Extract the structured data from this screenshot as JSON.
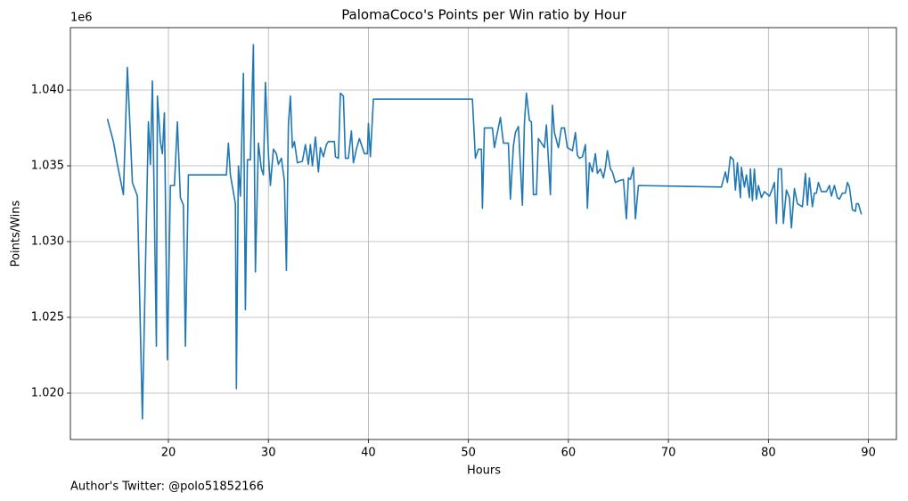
{
  "chart_data": {
    "type": "line",
    "title": "PalomaCoco's Points per Win ratio by Hour",
    "xlabel": "Hours",
    "ylabel": "Points/Wins",
    "y_offset_label": "1e6",
    "footnote": "Author's Twitter: @polo51852166",
    "x": [
      13.9,
      14.5,
      14.9,
      15.5,
      15.9,
      16.4,
      16.9,
      17.4,
      18.0,
      18.2,
      18.4,
      18.8,
      18.9,
      19.2,
      19.4,
      19.6,
      19.9,
      20.2,
      20.6,
      20.9,
      21.2,
      21.5,
      21.7,
      22.0,
      25.8,
      26.0,
      26.2,
      26.7,
      26.8,
      27.0,
      27.2,
      27.5,
      27.7,
      27.9,
      28.2,
      28.5,
      28.7,
      29.0,
      29.3,
      29.5,
      29.7,
      30.0,
      30.2,
      30.5,
      30.8,
      31.0,
      31.3,
      31.6,
      31.8,
      32.0,
      32.2,
      32.4,
      32.6,
      32.9,
      33.4,
      33.7,
      34.0,
      34.2,
      34.4,
      34.7,
      35.0,
      35.2,
      35.5,
      35.8,
      36.0,
      36.6,
      36.7,
      37.0,
      37.2,
      37.5,
      37.7,
      38.0,
      38.3,
      38.5,
      38.8,
      39.1,
      39.3,
      39.6,
      39.9,
      40.0,
      40.2,
      40.5,
      50.4,
      50.7,
      51.0,
      51.3,
      51.4,
      51.6,
      52.4,
      52.6,
      52.9,
      53.2,
      53.5,
      54.0,
      54.2,
      54.5,
      54.7,
      55.0,
      55.4,
      55.6,
      55.8,
      56.1,
      56.3,
      56.5,
      56.8,
      57.0,
      57.6,
      57.8,
      58.2,
      58.4,
      58.6,
      59.0,
      59.3,
      59.6,
      59.9,
      60.4,
      60.7,
      60.9,
      61.1,
      61.4,
      61.7,
      61.9,
      62.1,
      62.4,
      62.7,
      62.9,
      63.2,
      63.5,
      63.7,
      63.9,
      64.2,
      64.4,
      64.7,
      65.0,
      65.5,
      65.8,
      66.0,
      66.2,
      66.5,
      66.7,
      67.0,
      75.3,
      75.7,
      75.9,
      76.2,
      76.5,
      76.7,
      76.9,
      77.2,
      77.3,
      77.6,
      77.8,
      78.1,
      78.2,
      78.4,
      78.6,
      78.8,
      79.0,
      79.3,
      79.6,
      80.1,
      80.4,
      80.6,
      80.8,
      81.0,
      81.3,
      81.5,
      81.8,
      82.1,
      82.3,
      82.6,
      82.9,
      83.4,
      83.7,
      83.9,
      84.1,
      84.4,
      84.6,
      84.8,
      85.0,
      85.3,
      85.8,
      86.1,
      86.3,
      86.6,
      86.9,
      87.1,
      87.4,
      87.7,
      87.9,
      88.1,
      88.4,
      88.7,
      88.8,
      89.0,
      89.3
    ],
    "series": [
      {
        "name": "Points/Wins",
        "color": "#1f77b4",
        "values": [
          1.0381,
          1.0366,
          1.0351,
          1.0331,
          1.0415,
          1.0339,
          1.033,
          1.0183,
          1.0379,
          1.0351,
          1.0406,
          1.0231,
          1.0396,
          1.0366,
          1.0358,
          1.0385,
          1.0222,
          1.0337,
          1.0337,
          1.0379,
          1.0329,
          1.0324,
          1.0231,
          1.0344,
          1.0344,
          1.0365,
          1.0344,
          1.0325,
          1.0203,
          1.035,
          1.033,
          1.0411,
          1.0255,
          1.0354,
          1.0354,
          1.043,
          1.028,
          1.0365,
          1.0348,
          1.0344,
          1.0405,
          1.0358,
          1.0337,
          1.0361,
          1.0358,
          1.0351,
          1.0355,
          1.034,
          1.0281,
          1.0377,
          1.0396,
          1.0362,
          1.0366,
          1.0352,
          1.0353,
          1.0364,
          1.0351,
          1.0364,
          1.035,
          1.0369,
          1.0346,
          1.0362,
          1.0356,
          1.0364,
          1.0366,
          1.0366,
          1.0356,
          1.0355,
          1.0398,
          1.0396,
          1.0355,
          1.0355,
          1.0373,
          1.0352,
          1.0361,
          1.0368,
          1.0364,
          1.0358,
          1.0358,
          1.0378,
          1.0356,
          1.0394,
          1.0394,
          1.0355,
          1.0361,
          1.0361,
          1.0322,
          1.0375,
          1.0375,
          1.0362,
          1.0372,
          1.0382,
          1.0365,
          1.0365,
          1.0328,
          1.0363,
          1.0372,
          1.0376,
          1.0324,
          1.0378,
          1.0398,
          1.038,
          1.0379,
          1.0331,
          1.0331,
          1.0368,
          1.0362,
          1.0377,
          1.0331,
          1.039,
          1.0372,
          1.0362,
          1.0375,
          1.0375,
          1.0362,
          1.036,
          1.0372,
          1.0357,
          1.0355,
          1.0356,
          1.0364,
          1.0322,
          1.0352,
          1.0346,
          1.0358,
          1.0345,
          1.0348,
          1.0342,
          1.0349,
          1.036,
          1.0348,
          1.0346,
          1.0339,
          1.034,
          1.0341,
          1.0315,
          1.0342,
          1.0341,
          1.0349,
          1.0315,
          1.0337,
          1.0336,
          1.0346,
          1.0339,
          1.0356,
          1.0354,
          1.0334,
          1.0352,
          1.0329,
          1.0349,
          1.0336,
          1.0344,
          1.0329,
          1.0348,
          1.0327,
          1.0348,
          1.0328,
          1.0337,
          1.0329,
          1.0333,
          1.033,
          1.0335,
          1.0339,
          1.0312,
          1.0348,
          1.0348,
          1.0312,
          1.0334,
          1.0329,
          1.0309,
          1.0335,
          1.0325,
          1.0323,
          1.0345,
          1.0324,
          1.0342,
          1.0323,
          1.0332,
          1.0332,
          1.0339,
          1.0333,
          1.0333,
          1.0337,
          1.033,
          1.0337,
          1.0329,
          1.0328,
          1.0332,
          1.0332,
          1.0339,
          1.0336,
          1.0321,
          1.032,
          1.0325,
          1.0325,
          1.0318
        ]
      }
    ],
    "xlim": [
      10.2,
      92.8
    ],
    "ylim": [
      1.01694,
      1.04412
    ],
    "xticks": [
      20,
      30,
      40,
      50,
      60,
      70,
      80,
      90
    ],
    "yticks": [
      {
        "value": 1.02,
        "label": "1.020"
      },
      {
        "value": 1.025,
        "label": "1.025"
      },
      {
        "value": 1.03,
        "label": "1.030"
      },
      {
        "value": 1.035,
        "label": "1.035"
      },
      {
        "value": 1.04,
        "label": "1.040"
      }
    ],
    "grid": true
  }
}
